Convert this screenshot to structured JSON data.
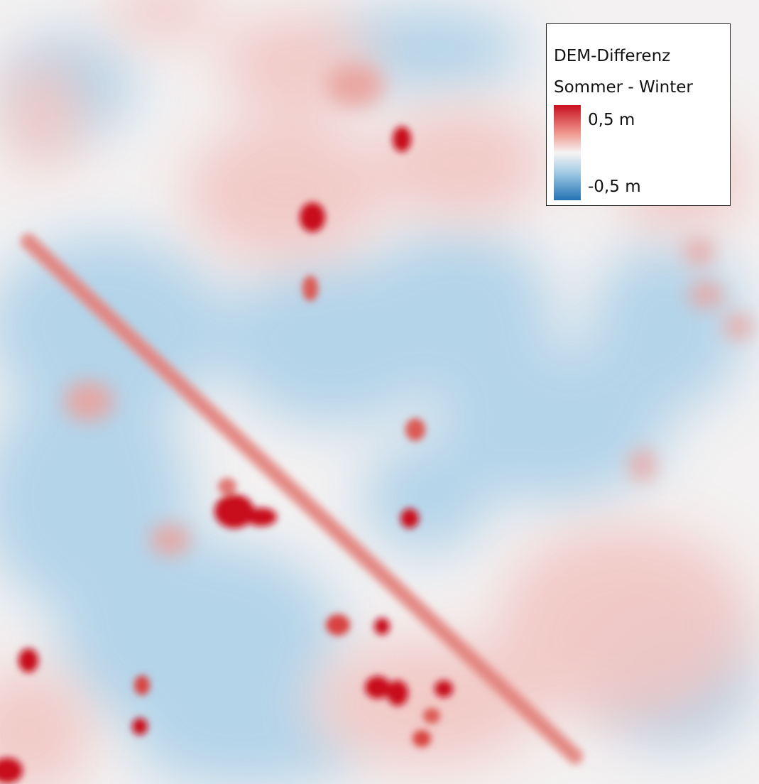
{
  "legend": {
    "title_line1": "DEM-Differenz",
    "title_line2": "Sommer - Winter",
    "max_label": "0,5 m",
    "min_label": "-0,5 m",
    "ramp_colors": {
      "high": "#c8101e",
      "mid": "#f7f4f4",
      "low": "#2273b5"
    }
  },
  "map": {
    "background_color": "#f3f1f1",
    "positive_color": "#d9333f",
    "negative_color": "#8ebfe0"
  }
}
